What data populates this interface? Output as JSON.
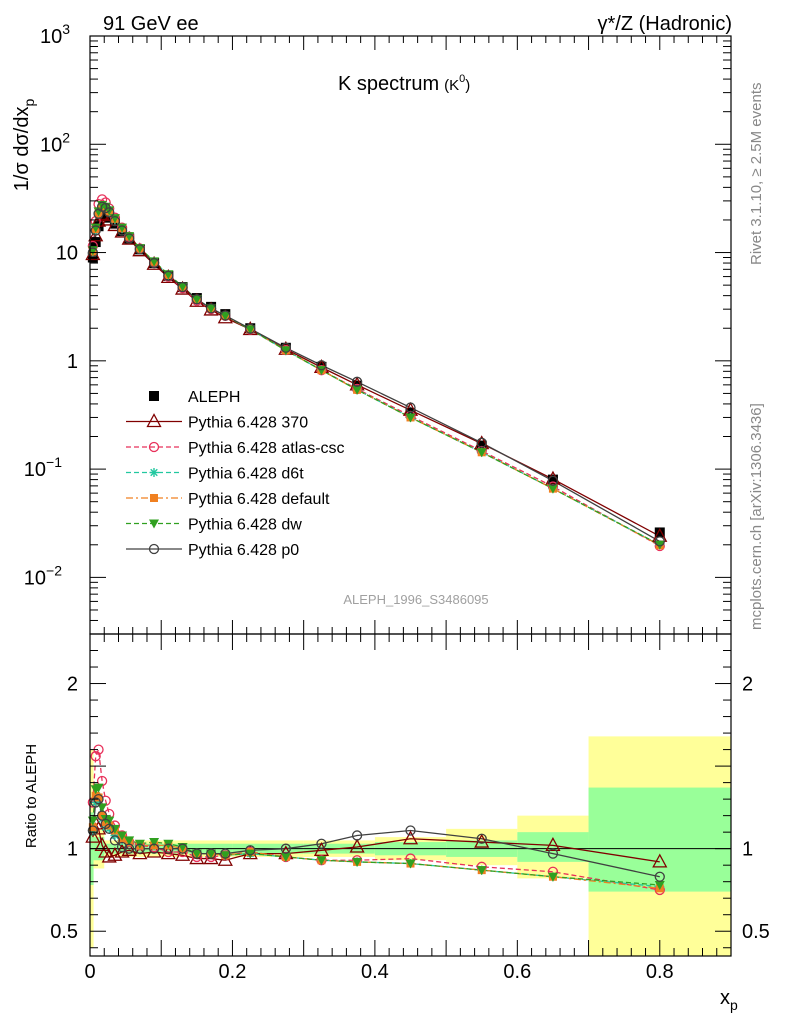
{
  "header": {
    "left": "91 GeV ee",
    "right": "γ*/Z (Hadronic)"
  },
  "side_labels": {
    "rivet": "Rivet 3.1.10, ≥ 2.5M events",
    "mcplots": "mcplots.cern.ch [arXiv:1306.3436]"
  },
  "chart_data": [
    {
      "type": "scatter",
      "title": "K spectrum",
      "title_sub": "(K",
      "title_sup": "0",
      "title_close": ")",
      "ylabel": "1/σ dσ/dx",
      "ylabel_sub": "p",
      "yscale": "log",
      "xlim": [
        0,
        0.9
      ],
      "ylim": [
        0.003,
        1000
      ],
      "y_tick_labels": [
        {
          "value": 1000,
          "base": "10",
          "exp": "3"
        },
        {
          "value": 100,
          "base": "10",
          "exp": "2"
        },
        {
          "value": 10,
          "base": "10",
          "exp": ""
        },
        {
          "value": 1,
          "base": "1",
          "exp": ""
        },
        {
          "value": 0.1,
          "base": "10",
          "exp": "−1"
        },
        {
          "value": 0.01,
          "base": "10",
          "exp": "−2"
        }
      ],
      "watermark": "ALEPH_1996_S3486095",
      "legend_position": "bottom-left",
      "data_x": [
        0.004,
        0.008,
        0.012,
        0.017,
        0.022,
        0.027,
        0.035,
        0.045,
        0.055,
        0.07,
        0.09,
        0.11,
        0.13,
        0.15,
        0.17,
        0.19,
        0.225,
        0.275,
        0.325,
        0.375,
        0.45,
        0.55,
        0.65,
        0.8
      ],
      "series": [
        {
          "name": "ALEPH",
          "color": "#000000",
          "marker": "square",
          "line": "none",
          "values": [
            9.0,
            12.5,
            17.5,
            22.0,
            22.5,
            21.0,
            18.5,
            15.8,
            13.5,
            10.7,
            8.0,
            6.1,
            4.8,
            3.8,
            3.15,
            2.7,
            2.0,
            1.32,
            0.88,
            0.59,
            0.33,
            0.165,
            0.08,
            0.026
          ]
        },
        {
          "name": "Pythia 6.428 370",
          "color": "#800000",
          "marker": "triangle-open",
          "line": "solid",
          "values": [
            9.6,
            14.3,
            19.5,
            22.5,
            22.0,
            20.0,
            17.8,
            15.5,
            13.3,
            10.4,
            7.8,
            5.9,
            4.6,
            3.55,
            2.95,
            2.5,
            1.95,
            1.28,
            0.87,
            0.6,
            0.35,
            0.172,
            0.081,
            0.024
          ]
        },
        {
          "name": "Pythia 6.428 atlas-csc",
          "color": "#e8305a",
          "marker": "circle-open",
          "line": "dashed",
          "values": [
            11.5,
            19.5,
            28.0,
            31.0,
            29.0,
            25.5,
            21.0,
            17.0,
            14.0,
            10.9,
            8.1,
            6.0,
            4.7,
            3.6,
            3.0,
            2.6,
            1.95,
            1.26,
            0.82,
            0.55,
            0.31,
            0.147,
            0.069,
            0.0195
          ]
        },
        {
          "name": "Pythia 6.428 d6t",
          "color": "#22c8a0",
          "marker": "star",
          "line": "dashed",
          "values": [
            10.0,
            16.0,
            22.5,
            26.0,
            25.5,
            23.5,
            20.0,
            16.6,
            14.0,
            10.9,
            8.2,
            6.2,
            4.8,
            3.7,
            3.05,
            2.6,
            1.95,
            1.25,
            0.82,
            0.54,
            0.3,
            0.143,
            0.066,
            0.02
          ]
        },
        {
          "name": "Pythia 6.428 default",
          "color": "#f08020",
          "marker": "square-solid",
          "line": "dashdot",
          "values": [
            10.2,
            16.5,
            23.0,
            26.5,
            26.0,
            24.0,
            20.5,
            16.8,
            14.1,
            10.9,
            8.2,
            6.2,
            4.8,
            3.7,
            3.05,
            2.6,
            1.96,
            1.25,
            0.82,
            0.54,
            0.3,
            0.143,
            0.066,
            0.0198
          ]
        },
        {
          "name": "Pythia 6.428 dw",
          "color": "#30a020",
          "marker": "triangle-down",
          "line": "dashed",
          "values": [
            10.5,
            17.0,
            24.0,
            27.5,
            26.5,
            24.5,
            20.8,
            17.0,
            14.2,
            11.0,
            8.3,
            6.3,
            4.85,
            3.7,
            3.05,
            2.6,
            1.95,
            1.25,
            0.82,
            0.54,
            0.3,
            0.143,
            0.066,
            0.02
          ]
        },
        {
          "name": "Pythia 6.428 p0",
          "color": "#404040",
          "marker": "circle-open",
          "line": "solid",
          "values": [
            10.0,
            16.0,
            22.8,
            26.5,
            25.8,
            23.5,
            19.5,
            16.0,
            13.5,
            10.7,
            8.0,
            6.1,
            4.8,
            3.7,
            3.05,
            2.62,
            1.98,
            1.32,
            0.91,
            0.64,
            0.37,
            0.175,
            0.078,
            0.0215
          ]
        }
      ]
    },
    {
      "type": "scatter",
      "ylabel": "Ratio to ALEPH",
      "xlabel": "x",
      "xlabel_sub": "p",
      "xlim": [
        0,
        0.9
      ],
      "ylim": [
        0.35,
        2.3
      ],
      "x_ticks": [
        0,
        0.2,
        0.4,
        0.6,
        0.8
      ],
      "x_tick_labels": [
        "0",
        "0.2",
        "0.4",
        "0.6",
        "0.8"
      ],
      "y_tick_labels": [
        {
          "value": 2,
          "label": "2"
        },
        {
          "value": 1,
          "label": "1"
        },
        {
          "value": 0.5,
          "label": "0.5"
        }
      ],
      "band_colors": {
        "inner": "#99ff99",
        "outer": "#ffff99"
      },
      "bands": [
        {
          "x0": 0.0,
          "x1": 0.005,
          "inner": [
            0.78,
            1.22
          ],
          "outer": [
            0.4,
            1.6
          ]
        },
        {
          "x0": 0.005,
          "x1": 0.02,
          "inner": [
            0.93,
            1.07
          ],
          "outer": [
            0.88,
            1.12
          ]
        },
        {
          "x0": 0.02,
          "x1": 0.1,
          "inner": [
            0.97,
            1.03
          ],
          "outer": [
            0.95,
            1.05
          ]
        },
        {
          "x0": 0.1,
          "x1": 0.2,
          "inner": [
            0.97,
            1.03
          ],
          "outer": [
            0.95,
            1.05
          ]
        },
        {
          "x0": 0.2,
          "x1": 0.3,
          "inner": [
            0.97,
            1.03
          ],
          "outer": [
            0.95,
            1.05
          ]
        },
        {
          "x0": 0.3,
          "x1": 0.4,
          "inner": [
            0.97,
            1.03
          ],
          "outer": [
            0.95,
            1.05
          ]
        },
        {
          "x0": 0.4,
          "x1": 0.5,
          "inner": [
            0.96,
            1.04
          ],
          "outer": [
            0.93,
            1.07
          ]
        },
        {
          "x0": 0.5,
          "x1": 0.6,
          "inner": [
            0.95,
            1.05
          ],
          "outer": [
            0.9,
            1.12
          ]
        },
        {
          "x0": 0.6,
          "x1": 0.7,
          "inner": [
            0.92,
            1.1
          ],
          "outer": [
            0.82,
            1.2
          ]
        },
        {
          "x0": 0.7,
          "x1": 0.9,
          "inner": [
            0.74,
            1.37
          ],
          "outer": [
            0.35,
            1.68
          ]
        }
      ],
      "series": [
        {
          "name": "Pythia 6.428 370",
          "color": "#800000",
          "marker": "triangle-open",
          "line": "solid",
          "values": [
            1.07,
            1.15,
            1.12,
            1.02,
            0.98,
            0.95,
            0.96,
            0.98,
            0.99,
            0.97,
            0.98,
            0.97,
            0.96,
            0.94,
            0.94,
            0.93,
            0.97,
            0.97,
            0.99,
            1.01,
            1.06,
            1.04,
            1.02,
            0.92
          ]
        },
        {
          "name": "Pythia 6.428 atlas-csc",
          "color": "#e8305a",
          "marker": "circle-open",
          "line": "dashed",
          "values": [
            1.28,
            1.56,
            1.6,
            1.41,
            1.29,
            1.21,
            1.14,
            1.08,
            1.04,
            1.02,
            1.01,
            0.98,
            0.98,
            0.95,
            0.95,
            0.96,
            0.98,
            0.95,
            0.93,
            0.93,
            0.94,
            0.89,
            0.86,
            0.75
          ]
        },
        {
          "name": "Pythia 6.428 d6t",
          "color": "#22c8a0",
          "marker": "star",
          "line": "dashed",
          "values": [
            1.11,
            1.28,
            1.29,
            1.18,
            1.13,
            1.12,
            1.08,
            1.05,
            1.04,
            1.02,
            1.02,
            1.02,
            1.0,
            0.97,
            0.97,
            0.96,
            0.97,
            0.95,
            0.93,
            0.92,
            0.91,
            0.87,
            0.83,
            0.77
          ]
        },
        {
          "name": "Pythia 6.428 default",
          "color": "#f08020",
          "marker": "square-solid",
          "line": "dashdot",
          "values": [
            1.13,
            1.32,
            1.31,
            1.2,
            1.16,
            1.14,
            1.11,
            1.06,
            1.04,
            1.02,
            1.02,
            1.02,
            1.0,
            0.97,
            0.97,
            0.96,
            0.98,
            0.95,
            0.93,
            0.92,
            0.91,
            0.87,
            0.83,
            0.76
          ]
        },
        {
          "name": "Pythia 6.428 dw",
          "color": "#30a020",
          "marker": "triangle-down",
          "line": "dashed",
          "values": [
            1.17,
            1.36,
            1.37,
            1.25,
            1.18,
            1.17,
            1.12,
            1.08,
            1.05,
            1.03,
            1.04,
            1.03,
            1.01,
            0.97,
            0.97,
            0.96,
            0.97,
            0.95,
            0.93,
            0.92,
            0.91,
            0.87,
            0.83,
            0.78
          ]
        },
        {
          "name": "Pythia 6.428 p0",
          "color": "#404040",
          "marker": "circle-open",
          "line": "solid",
          "values": [
            1.11,
            1.28,
            1.3,
            1.2,
            1.15,
            1.12,
            1.05,
            1.01,
            1.0,
            1.0,
            1.0,
            1.0,
            1.0,
            0.97,
            0.97,
            0.97,
            0.99,
            1.0,
            1.03,
            1.08,
            1.11,
            1.06,
            0.97,
            0.83
          ]
        }
      ]
    }
  ]
}
